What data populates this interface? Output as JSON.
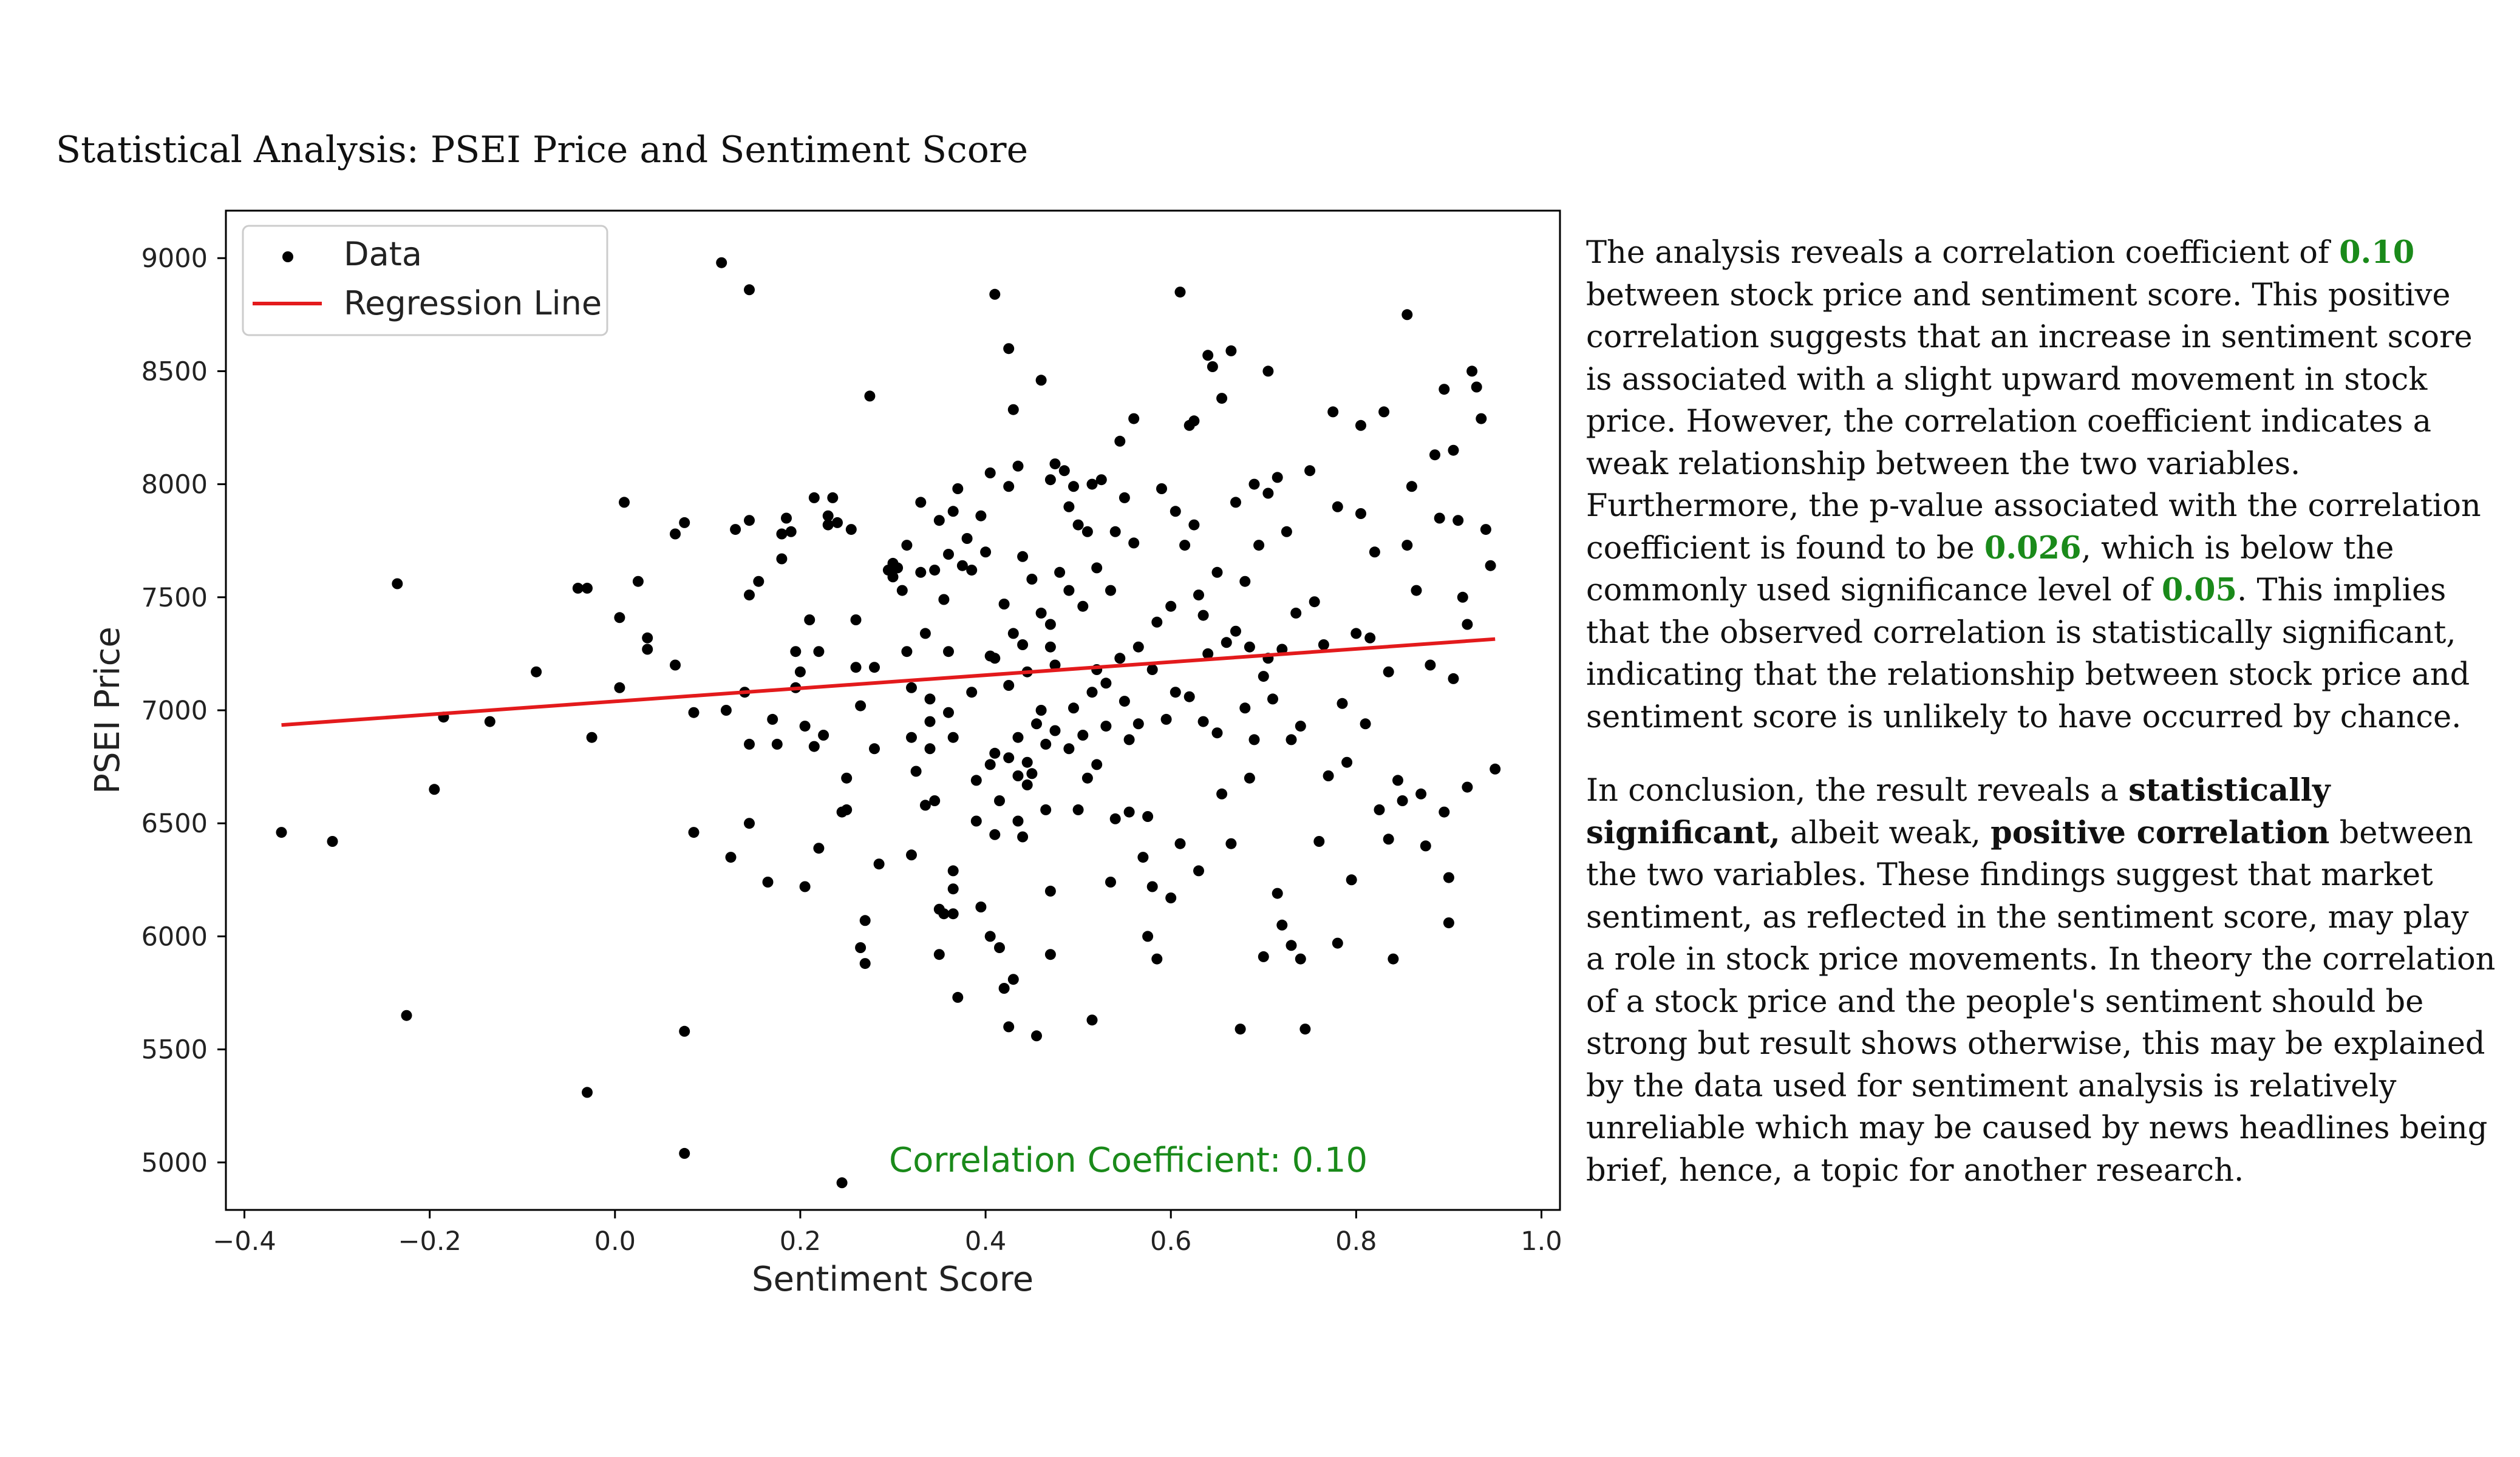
{
  "page": {
    "title": "Statistical Analysis: PSEI Price and Sentiment Score"
  },
  "colors": {
    "points": "#000000",
    "regression": "#e31a1c",
    "highlight": "#1a8a1a"
  },
  "analysis": {
    "p1_a": "The analysis reveals a correlation coefficient of ",
    "p1_corr": "0.10",
    "p1_b": " between stock price and sentiment score. This positive correlation suggests that an increase in sentiment score is associated with a slight upward movement in stock price. However, the correlation coefficient indicates a weak relationship between the two variables. Furthermore, the p-value associated with the correlation coefficient is found to be ",
    "p1_pvalue": "0.026",
    "p1_c": ", which is below the commonly used significance level of ",
    "p1_alpha": "0.05",
    "p1_d": ". This implies that the observed correlation is statistically significant, indicating that the relationship between stock price and sentiment score is unlikely to have occurred by chance.",
    "p2_a": "In conclusion, the result reveals a ",
    "p2_b1": "statistically significant,",
    "p2_b": " albeit weak, ",
    "p2_b2": "positive correlation",
    "p2_c": " between the two variables. These findings suggest that market sentiment, as reflected in the sentiment score, may play a role in stock price movements. In theory the correlation of a stock price and the people's sentiment should be strong but result shows otherwise, this may be explained by the data used for sentiment analysis is relatively unreliable which may be caused by news headlines being brief, hence, a topic for another research."
  },
  "chart_data": {
    "type": "scatter",
    "xlabel": "Sentiment Score",
    "ylabel": "PSEI Price",
    "xlim": [
      -0.42,
      1.02
    ],
    "ylim": [
      4790,
      9210
    ],
    "xticks": [
      -0.4,
      -0.2,
      0.0,
      0.2,
      0.4,
      0.6,
      0.8,
      1.0
    ],
    "xtick_labels": [
      "−0.4",
      "−0.2",
      "0.0",
      "0.2",
      "0.4",
      "0.6",
      "0.8",
      "1.0"
    ],
    "yticks": [
      5000,
      5500,
      6000,
      6500,
      7000,
      7500,
      8000,
      8500,
      9000
    ],
    "ytick_labels": [
      "5000",
      "5500",
      "6000",
      "6500",
      "7000",
      "7500",
      "8000",
      "8500",
      "9000"
    ],
    "grid": false,
    "legend": {
      "position": "top-left",
      "entries": [
        "Data",
        "Regression Line"
      ]
    },
    "annotation": {
      "text": "Correlation Coefficient: 0.10",
      "marker_x": 0.245,
      "marker_y": 4910
    },
    "regression": {
      "x": [
        -0.36,
        0.95
      ],
      "y": [
        6935,
        7315
      ]
    },
    "points": [
      [
        -0.36,
        6460
      ],
      [
        -0.305,
        6420
      ],
      [
        -0.235,
        7560
      ],
      [
        -0.225,
        5650
      ],
      [
        -0.195,
        6650
      ],
      [
        -0.185,
        6970
      ],
      [
        -0.135,
        6950
      ],
      [
        -0.085,
        7170
      ],
      [
        -0.04,
        7540
      ],
      [
        -0.03,
        7540
      ],
      [
        -0.03,
        5310
      ],
      [
        -0.025,
        6880
      ],
      [
        0.01,
        7920
      ],
      [
        0.005,
        7100
      ],
      [
        0.005,
        7410
      ],
      [
        0.025,
        7570
      ],
      [
        0.035,
        7320
      ],
      [
        0.035,
        7270
      ],
      [
        0.065,
        7780
      ],
      [
        0.065,
        7200
      ],
      [
        0.075,
        7830
      ],
      [
        0.075,
        5580
      ],
      [
        0.075,
        5040
      ],
      [
        0.085,
        6460
      ],
      [
        0.085,
        6990
      ],
      [
        0.115,
        8980
      ],
      [
        0.12,
        7000
      ],
      [
        0.125,
        6350
      ],
      [
        0.13,
        7800
      ],
      [
        0.14,
        7080
      ],
      [
        0.145,
        8860
      ],
      [
        0.145,
        7510
      ],
      [
        0.145,
        7840
      ],
      [
        0.145,
        6500
      ],
      [
        0.145,
        6850
      ],
      [
        0.155,
        7570
      ],
      [
        0.165,
        6240
      ],
      [
        0.17,
        6960
      ],
      [
        0.175,
        6850
      ],
      [
        0.18,
        7780
      ],
      [
        0.18,
        7670
      ],
      [
        0.185,
        7850
      ],
      [
        0.19,
        7790
      ],
      [
        0.195,
        7260
      ],
      [
        0.195,
        7100
      ],
      [
        0.2,
        7170
      ],
      [
        0.205,
        6930
      ],
      [
        0.205,
        6220
      ],
      [
        0.21,
        7400
      ],
      [
        0.215,
        7940
      ],
      [
        0.215,
        6840
      ],
      [
        0.22,
        7260
      ],
      [
        0.22,
        6390
      ],
      [
        0.225,
        6890
      ],
      [
        0.23,
        7820
      ],
      [
        0.23,
        7860
      ],
      [
        0.235,
        7940
      ],
      [
        0.24,
        7830
      ],
      [
        0.245,
        6550
      ],
      [
        0.25,
        6700
      ],
      [
        0.25,
        6560
      ],
      [
        0.255,
        7800
      ],
      [
        0.26,
        7400
      ],
      [
        0.26,
        7190
      ],
      [
        0.265,
        7020
      ],
      [
        0.265,
        5950
      ],
      [
        0.27,
        6070
      ],
      [
        0.27,
        5880
      ],
      [
        0.275,
        8390
      ],
      [
        0.28,
        7190
      ],
      [
        0.28,
        6830
      ],
      [
        0.285,
        6320
      ],
      [
        0.295,
        7620
      ],
      [
        0.3,
        7590
      ],
      [
        0.3,
        7650
      ],
      [
        0.305,
        7630
      ],
      [
        0.31,
        7530
      ],
      [
        0.315,
        7260
      ],
      [
        0.315,
        7730
      ],
      [
        0.32,
        7100
      ],
      [
        0.32,
        6880
      ],
      [
        0.32,
        6360
      ],
      [
        0.325,
        6730
      ],
      [
        0.33,
        7610
      ],
      [
        0.33,
        7920
      ],
      [
        0.335,
        7340
      ],
      [
        0.335,
        6580
      ],
      [
        0.34,
        6950
      ],
      [
        0.34,
        7050
      ],
      [
        0.34,
        6830
      ],
      [
        0.345,
        7620
      ],
      [
        0.345,
        6600
      ],
      [
        0.35,
        7840
      ],
      [
        0.35,
        6120
      ],
      [
        0.35,
        5920
      ],
      [
        0.355,
        7490
      ],
      [
        0.355,
        6100
      ],
      [
        0.36,
        7690
      ],
      [
        0.36,
        7260
      ],
      [
        0.36,
        6990
      ],
      [
        0.365,
        7880
      ],
      [
        0.365,
        6880
      ],
      [
        0.365,
        6290
      ],
      [
        0.365,
        6210
      ],
      [
        0.365,
        6100
      ],
      [
        0.37,
        7980
      ],
      [
        0.37,
        5730
      ],
      [
        0.375,
        7640
      ],
      [
        0.38,
        7760
      ],
      [
        0.385,
        7620
      ],
      [
        0.385,
        7080
      ],
      [
        0.39,
        6690
      ],
      [
        0.39,
        6510
      ],
      [
        0.395,
        7860
      ],
      [
        0.395,
        6130
      ],
      [
        0.4,
        7700
      ],
      [
        0.405,
        8050
      ],
      [
        0.405,
        7240
      ],
      [
        0.405,
        6760
      ],
      [
        0.405,
        6000
      ],
      [
        0.41,
        8840
      ],
      [
        0.41,
        7230
      ],
      [
        0.41,
        6810
      ],
      [
        0.41,
        6450
      ],
      [
        0.415,
        6600
      ],
      [
        0.415,
        5950
      ],
      [
        0.42,
        7470
      ],
      [
        0.42,
        5770
      ],
      [
        0.425,
        8600
      ],
      [
        0.425,
        7990
      ],
      [
        0.425,
        7110
      ],
      [
        0.425,
        6790
      ],
      [
        0.425,
        5600
      ],
      [
        0.43,
        8330
      ],
      [
        0.43,
        7340
      ],
      [
        0.43,
        5810
      ],
      [
        0.435,
        8080
      ],
      [
        0.435,
        6880
      ],
      [
        0.435,
        6710
      ],
      [
        0.435,
        6510
      ],
      [
        0.44,
        7680
      ],
      [
        0.44,
        7290
      ],
      [
        0.44,
        6440
      ],
      [
        0.445,
        6770
      ],
      [
        0.445,
        7170
      ],
      [
        0.445,
        6670
      ],
      [
        0.45,
        7580
      ],
      [
        0.45,
        6720
      ],
      [
        0.455,
        6940
      ],
      [
        0.455,
        5560
      ],
      [
        0.46,
        8460
      ],
      [
        0.46,
        7430
      ],
      [
        0.46,
        7000
      ],
      [
        0.465,
        6850
      ],
      [
        0.465,
        6560
      ],
      [
        0.47,
        8020
      ],
      [
        0.47,
        7380
      ],
      [
        0.47,
        7280
      ],
      [
        0.47,
        6200
      ],
      [
        0.47,
        5920
      ],
      [
        0.475,
        8090
      ],
      [
        0.475,
        7200
      ],
      [
        0.475,
        6910
      ],
      [
        0.48,
        7610
      ],
      [
        0.485,
        8060
      ],
      [
        0.49,
        7900
      ],
      [
        0.49,
        7530
      ],
      [
        0.49,
        6830
      ],
      [
        0.495,
        7990
      ],
      [
        0.495,
        7010
      ],
      [
        0.5,
        7820
      ],
      [
        0.5,
        6560
      ],
      [
        0.505,
        7460
      ],
      [
        0.505,
        6890
      ],
      [
        0.51,
        7790
      ],
      [
        0.51,
        6700
      ],
      [
        0.515,
        8000
      ],
      [
        0.515,
        7080
      ],
      [
        0.515,
        5630
      ],
      [
        0.52,
        7630
      ],
      [
        0.52,
        7180
      ],
      [
        0.52,
        6760
      ],
      [
        0.525,
        8020
      ],
      [
        0.53,
        7120
      ],
      [
        0.53,
        6930
      ],
      [
        0.535,
        7530
      ],
      [
        0.535,
        6240
      ],
      [
        0.54,
        7790
      ],
      [
        0.54,
        6520
      ],
      [
        0.545,
        8190
      ],
      [
        0.545,
        7230
      ],
      [
        0.55,
        7940
      ],
      [
        0.55,
        7040
      ],
      [
        0.555,
        6870
      ],
      [
        0.555,
        6550
      ],
      [
        0.56,
        8290
      ],
      [
        0.56,
        7740
      ],
      [
        0.565,
        7280
      ],
      [
        0.565,
        6940
      ],
      [
        0.57,
        6350
      ],
      [
        0.575,
        6530
      ],
      [
        0.575,
        6000
      ],
      [
        0.58,
        7180
      ],
      [
        0.58,
        6220
      ],
      [
        0.585,
        7390
      ],
      [
        0.585,
        5900
      ],
      [
        0.59,
        7980
      ],
      [
        0.595,
        6960
      ],
      [
        0.6,
        7460
      ],
      [
        0.6,
        6170
      ],
      [
        0.605,
        7880
      ],
      [
        0.605,
        7080
      ],
      [
        0.61,
        8850
      ],
      [
        0.61,
        6410
      ],
      [
        0.615,
        7730
      ],
      [
        0.62,
        8260
      ],
      [
        0.62,
        7060
      ],
      [
        0.625,
        8280
      ],
      [
        0.625,
        7820
      ],
      [
        0.63,
        7510
      ],
      [
        0.63,
        6290
      ],
      [
        0.635,
        7420
      ],
      [
        0.635,
        6950
      ],
      [
        0.64,
        8570
      ],
      [
        0.64,
        7250
      ],
      [
        0.645,
        8520
      ],
      [
        0.65,
        7610
      ],
      [
        0.65,
        6900
      ],
      [
        0.655,
        8380
      ],
      [
        0.655,
        6630
      ],
      [
        0.66,
        7300
      ],
      [
        0.665,
        8590
      ],
      [
        0.665,
        6410
      ],
      [
        0.67,
        7920
      ],
      [
        0.67,
        7350
      ],
      [
        0.675,
        5590
      ],
      [
        0.68,
        7570
      ],
      [
        0.68,
        7010
      ],
      [
        0.685,
        7280
      ],
      [
        0.685,
        6700
      ],
      [
        0.69,
        8000
      ],
      [
        0.69,
        6870
      ],
      [
        0.695,
        7730
      ],
      [
        0.7,
        7150
      ],
      [
        0.7,
        5910
      ],
      [
        0.705,
        8500
      ],
      [
        0.705,
        7960
      ],
      [
        0.705,
        7230
      ],
      [
        0.71,
        7050
      ],
      [
        0.715,
        8030
      ],
      [
        0.715,
        6190
      ],
      [
        0.72,
        7270
      ],
      [
        0.72,
        6050
      ],
      [
        0.725,
        7790
      ],
      [
        0.73,
        6870
      ],
      [
        0.73,
        5960
      ],
      [
        0.735,
        7430
      ],
      [
        0.74,
        6930
      ],
      [
        0.74,
        5900
      ],
      [
        0.745,
        5590
      ],
      [
        0.75,
        8060
      ],
      [
        0.755,
        7480
      ],
      [
        0.76,
        6420
      ],
      [
        0.765,
        7290
      ],
      [
        0.77,
        6710
      ],
      [
        0.775,
        8320
      ],
      [
        0.78,
        7900
      ],
      [
        0.78,
        5970
      ],
      [
        0.785,
        7030
      ],
      [
        0.79,
        6770
      ],
      [
        0.795,
        6250
      ],
      [
        0.8,
        7340
      ],
      [
        0.805,
        8260
      ],
      [
        0.805,
        7870
      ],
      [
        0.81,
        6940
      ],
      [
        0.815,
        7320
      ],
      [
        0.82,
        7700
      ],
      [
        0.825,
        6560
      ],
      [
        0.83,
        8320
      ],
      [
        0.835,
        7170
      ],
      [
        0.835,
        6430
      ],
      [
        0.84,
        5900
      ],
      [
        0.845,
        6690
      ],
      [
        0.85,
        6600
      ],
      [
        0.855,
        8750
      ],
      [
        0.855,
        7730
      ],
      [
        0.86,
        7990
      ],
      [
        0.865,
        7530
      ],
      [
        0.87,
        6630
      ],
      [
        0.875,
        6400
      ],
      [
        0.88,
        7200
      ],
      [
        0.885,
        8130
      ],
      [
        0.89,
        7850
      ],
      [
        0.895,
        8420
      ],
      [
        0.895,
        6550
      ],
      [
        0.9,
        6060
      ],
      [
        0.9,
        6260
      ],
      [
        0.905,
        8150
      ],
      [
        0.905,
        7140
      ],
      [
        0.91,
        7840
      ],
      [
        0.915,
        7500
      ],
      [
        0.92,
        7380
      ],
      [
        0.92,
        6660
      ],
      [
        0.925,
        8500
      ],
      [
        0.93,
        8430
      ],
      [
        0.935,
        8290
      ],
      [
        0.94,
        7800
      ],
      [
        0.945,
        7640
      ],
      [
        0.95,
        6740
      ]
    ]
  }
}
